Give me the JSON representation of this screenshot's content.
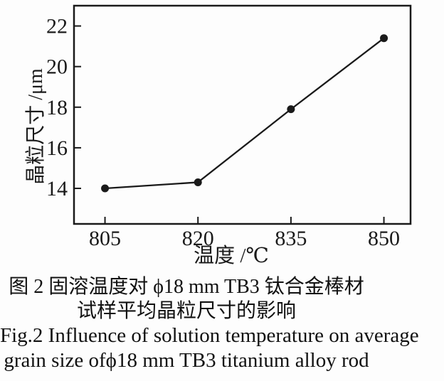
{
  "figure": {
    "caption_zh_line1": "图 2  固溶温度对 ϕ18 mm TB3 钛合金棒材",
    "caption_zh_line2": "试样平均晶粒尺寸的影响",
    "caption_en_line1": "Fig.2  Influence of solution temperature on average",
    "caption_en_line2": "grain size ofϕ18 mm TB3 titanium alloy rod"
  },
  "chart_data": {
    "type": "line",
    "series_name": "average grain size",
    "x": [
      805,
      820,
      835,
      850
    ],
    "y": [
      14.0,
      14.3,
      17.9,
      21.4
    ],
    "xlabel": "温度 /℃",
    "ylabel": "晶粒尺寸 /μm",
    "x_ticks": [
      805,
      820,
      835,
      850
    ],
    "y_ticks": [
      14,
      16,
      18,
      20,
      22
    ],
    "xlim": [
      800,
      854.3
    ],
    "ylim": [
      12.25,
      23.0
    ],
    "grid": false,
    "legend": false,
    "marker": "filled-circle",
    "line_color": "#1a1a1a",
    "marker_color": "#1a1a1a",
    "frame_color": "#1a1a1a",
    "background": "#fdfdfd"
  }
}
